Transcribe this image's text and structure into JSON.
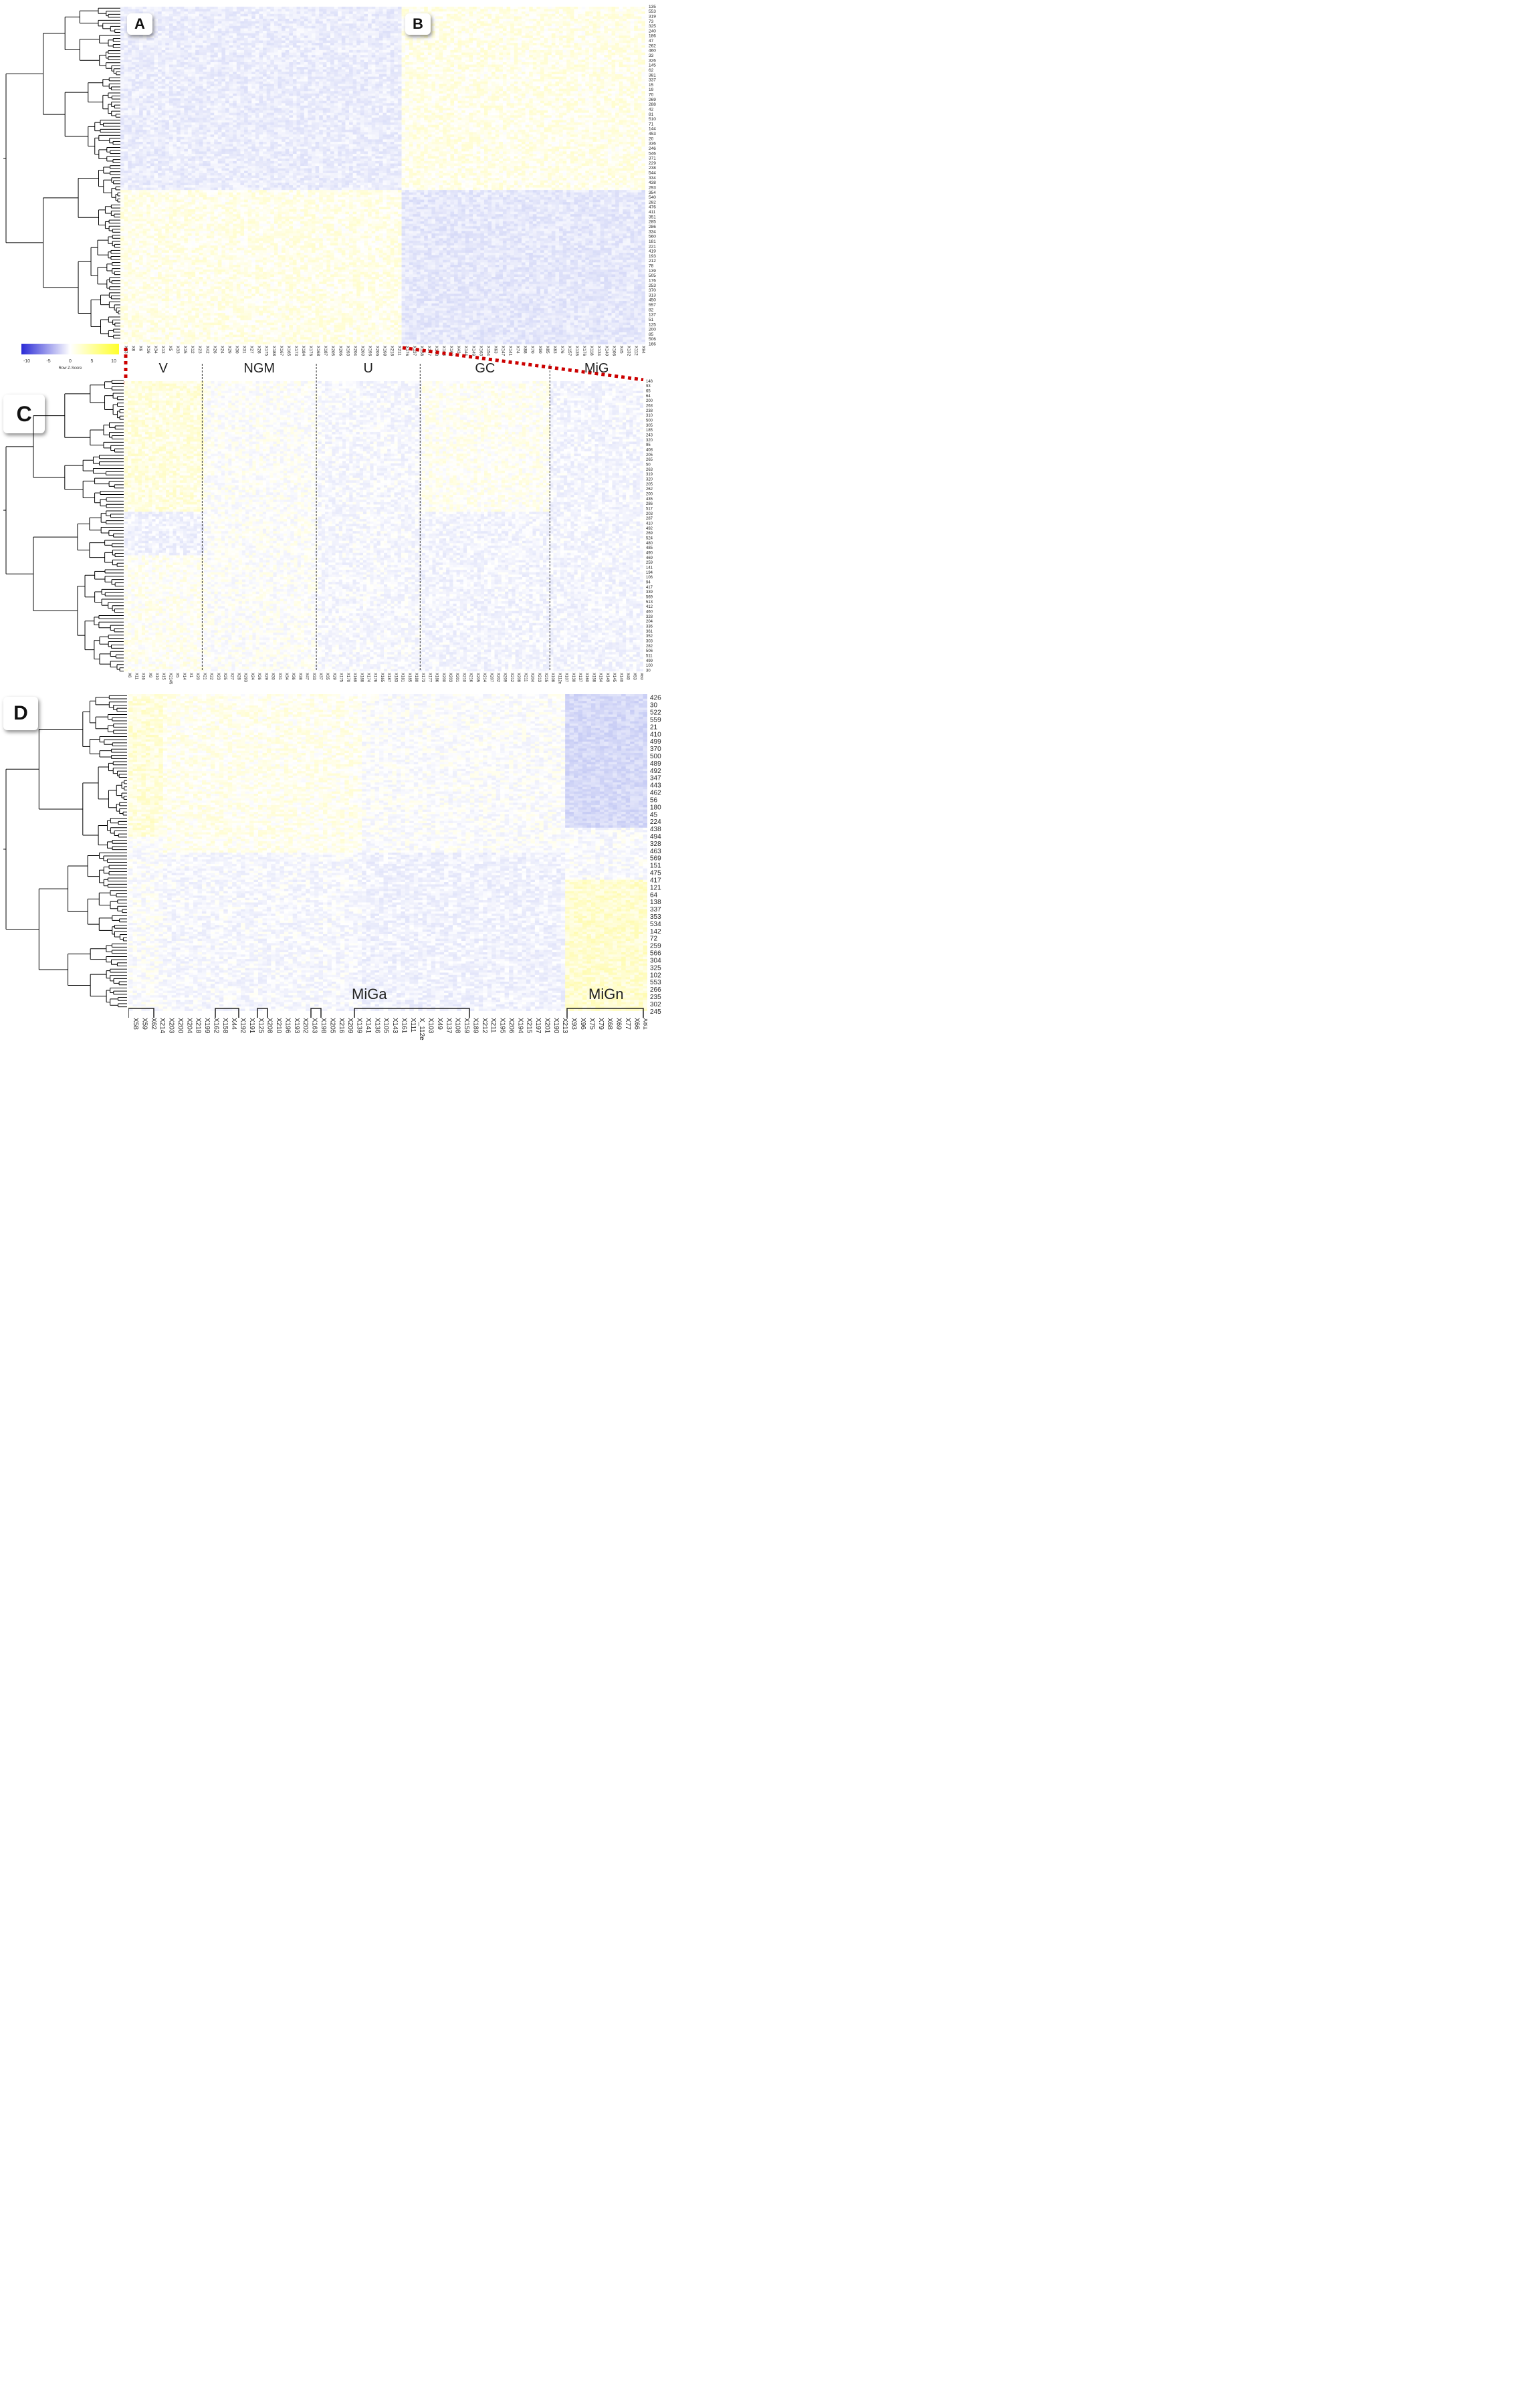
{
  "panels": {
    "A": "A",
    "B": "B",
    "C": "C",
    "D": "D"
  },
  "colors": {
    "low": "#2b2bd6",
    "mid": "#ffffff",
    "high": "#ffff2a",
    "dendro": "#000000",
    "dotted_red": "#cc0000"
  },
  "colorkey": {
    "ticks": [
      "-10",
      "-5",
      "0",
      "5",
      "10"
    ],
    "label": "Row Z-Score"
  },
  "panel_ab": {
    "row_labels": [
      "135",
      "553",
      "319",
      "73",
      "325",
      "240",
      "186",
      "47",
      "262",
      "460",
      "33",
      "326",
      "145",
      "62",
      "381",
      "337",
      "15",
      "19",
      "70",
      "269",
      "288",
      "42",
      "81",
      "510",
      "71",
      "144",
      "453",
      "20",
      "336",
      "246",
      "546",
      "371",
      "229",
      "238",
      "544",
      "334",
      "438",
      "293",
      "354",
      "540",
      "282",
      "476",
      "411",
      "351",
      "285",
      "286",
      "334",
      "560",
      "181",
      "221",
      "419",
      "193",
      "212",
      "78",
      "139",
      "505",
      "176",
      "253",
      "370",
      "313",
      "450",
      "557",
      "82",
      "137",
      "51",
      "125",
      "200",
      "85",
      "506",
      "166"
    ],
    "col_labels": [
      "X23",
      "X8",
      "X6",
      "X16",
      "X34",
      "X13",
      "X5",
      "X33",
      "X15",
      "X12",
      "X23",
      "X42",
      "X26",
      "X24",
      "X29",
      "X30",
      "X31",
      "X27",
      "X28",
      "X175",
      "X188",
      "X167",
      "X165",
      "X173",
      "X184",
      "X176",
      "X168",
      "X187",
      "X205",
      "X206",
      "X193",
      "X204",
      "X203",
      "X196",
      "X206",
      "X198",
      "X218",
      "X211",
      "X176",
      "X137",
      "X158",
      "X147",
      "X168",
      "X163",
      "X162",
      "X43",
      "X144",
      "X149",
      "X163",
      "X154",
      "X63",
      "X147",
      "X141",
      "X74",
      "X88",
      "X70",
      "X90",
      "X85",
      "X83",
      "X76",
      "X157",
      "X135",
      "X176",
      "X118",
      "X134",
      "X140",
      "X106",
      "X45",
      "X132",
      "X112",
      "X94"
    ]
  },
  "panel_c": {
    "groups": [
      "V",
      "NGM",
      "U",
      "GC",
      "MiG"
    ],
    "row_labels": [
      "148",
      "93",
      "65",
      "64",
      "200",
      "263",
      "238",
      "310",
      "500",
      "305",
      "185",
      "243",
      "320",
      "95",
      "408",
      "205",
      "265",
      "50",
      "263",
      "319",
      "320",
      "205",
      "262",
      "200",
      "435",
      "286",
      "517",
      "203",
      "287",
      "410",
      "492",
      "269",
      "524",
      "480",
      "485",
      "490",
      "469",
      "259",
      "141",
      "194",
      "106",
      "94",
      "417",
      "339",
      "569",
      "513",
      "412",
      "460",
      "328",
      "204",
      "336",
      "361",
      "352",
      "303",
      "282",
      "506",
      "511",
      "499",
      "100",
      "30"
    ],
    "col_labels": [
      "X6",
      "X11",
      "X16",
      "X9",
      "X10",
      "X15",
      "X2145",
      "X5",
      "X14",
      "X1",
      "X20",
      "X21",
      "X22",
      "X23",
      "X25",
      "X27",
      "X28",
      "X293",
      "X24",
      "X26",
      "X29",
      "X30",
      "X31",
      "X34",
      "X36",
      "X38",
      "X47",
      "X33",
      "X37",
      "X35",
      "X29",
      "X175",
      "X170",
      "X169",
      "X188",
      "X174",
      "X176",
      "X165",
      "X187",
      "X183",
      "X181",
      "X185",
      "X180",
      "X173",
      "X177",
      "X186",
      "X200",
      "X203",
      "X201",
      "X210",
      "X216",
      "X205",
      "X214",
      "X207",
      "X202",
      "X209",
      "X212",
      "X208",
      "X211",
      "X204",
      "X213",
      "X215",
      "X108",
      "X112e",
      "X107",
      "X130",
      "X137",
      "X160",
      "X158",
      "X154",
      "X149",
      "X145",
      "X140",
      "X40",
      "X53",
      "X60"
    ]
  },
  "panel_d": {
    "row_labels": [
      "426",
      "30",
      "522",
      "559",
      "21",
      "410",
      "499",
      "370",
      "500",
      "489",
      "492",
      "347",
      "443",
      "462",
      "56",
      "180",
      "45",
      "224",
      "438",
      "494",
      "328",
      "463",
      "569",
      "151",
      "475",
      "417",
      "121",
      "64",
      "138",
      "337",
      "353",
      "534",
      "142",
      "72",
      "259",
      "566",
      "304",
      "325",
      "102",
      "553",
      "266",
      "235",
      "302",
      "245"
    ],
    "col_labels": [
      "X58",
      "X59",
      "X62",
      "X214",
      "X203",
      "X200",
      "X204",
      "X218",
      "X199",
      "X162",
      "X158",
      "X44",
      "X192",
      "X191",
      "X125",
      "X208",
      "X210",
      "X196",
      "X193",
      "X202",
      "X163",
      "X198",
      "X205",
      "X216",
      "X209",
      "X139",
      "X141",
      "X136",
      "X105",
      "X143",
      "X161",
      "X111",
      "X_112e",
      "X103",
      "X49",
      "X137",
      "X108",
      "X159",
      "X189",
      "X212",
      "X211",
      "X195",
      "X206",
      "X194",
      "X215",
      "X197",
      "X201",
      "X190",
      "X213",
      "X93",
      "X96",
      "X75",
      "X79",
      "X68",
      "X69",
      "X77",
      "X66",
      "X81"
    ],
    "subgroups": [
      "MiGa",
      "MiGn"
    ]
  }
}
